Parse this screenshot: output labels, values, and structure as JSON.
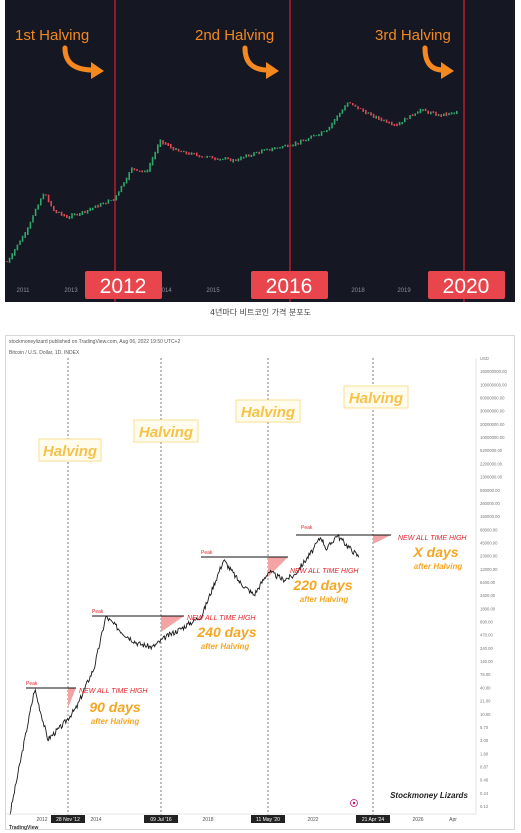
{
  "caption": "4년마다 비트코인 가격 분포도",
  "top": {
    "halving_labels": [
      "1st Halving",
      "2nd Halving",
      "3rd Halving"
    ],
    "year_badges": [
      "2012",
      "2016",
      "2020"
    ],
    "x_ticks": [
      "2011",
      "2013",
      "2014",
      "2015",
      "2017",
      "2018",
      "2019"
    ],
    "colors": {
      "background": "#151822",
      "halving_line": "#d0202c",
      "arrow": "#f5891f",
      "badge": "#e8454d",
      "up_candle": "#2ea86b",
      "down_candle": "#e04653"
    }
  },
  "bottom": {
    "header": "stockmoneylizard published on TradingView.com, Aug 06, 2022 19:50 UTC+2",
    "symbol": "Bitcoin / U.S. Dollar, 1D, INDEX",
    "halving_label": "Halving",
    "peak_label": "Peak",
    "ath_label": "NEW ALL TIME HIGH",
    "days": [
      "90 days",
      "240 days",
      "220 days",
      "X days"
    ],
    "after_label": "after Halving",
    "date_badges": [
      "28 Nov '12",
      "09 Jul '16",
      "11 May '20",
      "21 Apr '24"
    ],
    "x_ticks": [
      "2012",
      "2014",
      "2018",
      "2022",
      "2026",
      "Apr"
    ],
    "y_ticks": [
      "USD",
      "160000000.00",
      "100000000.00",
      "60000000.00",
      "30000000.00",
      "20000000.00",
      "10000000.00",
      "5200000.00",
      "2200000.00",
      "1300000.00",
      "590000.00",
      "260000.00",
      "150000.00",
      "68000.00",
      "45000.00",
      "23000.00",
      "12000.00",
      "6400.00",
      "3400.00",
      "1800.00",
      "890.00",
      "470.00",
      "240.00",
      "140.00",
      "76.00",
      "40.00",
      "21.00",
      "10.00",
      "5.70",
      "3.00",
      "1.60",
      "0.87",
      "0.46",
      "0.24",
      "0.12"
    ],
    "brand": "Stockmoney Lizards",
    "tv": "TradingView",
    "colors": {
      "ath_text": "#e0262c",
      "days_text": "#f5a623",
      "halving_text": "#f5c24a",
      "halving_border": "#f7d877",
      "shade": "#f3a3a3"
    }
  },
  "chart_data": [
    {
      "type": "line",
      "title": "",
      "xlabel": "",
      "ylabel": "",
      "x": [
        2010.6,
        2011.0,
        2011.4,
        2011.6,
        2011.9,
        2012.3,
        2012.9,
        2013.3,
        2013.6,
        2013.9,
        2014.3,
        2014.9,
        2015.5,
        2016.0,
        2016.5,
        2017.0,
        2017.5,
        2017.95,
        2018.5,
        2019.0,
        2019.5,
        2019.9,
        2020.3
      ],
      "values": [
        0.1,
        1.0,
        20,
        5,
        3,
        5,
        12,
        130,
        90,
        1000,
        450,
        300,
        230,
        430,
        650,
        1000,
        2500,
        19000,
        6500,
        3500,
        11000,
        7200,
        8800
      ],
      "x_ticks": [
        "2011",
        "2013",
        "2014",
        "2015",
        "2017",
        "2018",
        "2019"
      ],
      "annotations": [
        "1st Halving",
        "2nd Halving",
        "3rd Halving",
        "2012",
        "2016",
        "2020"
      ],
      "grid": false
    },
    {
      "type": "line",
      "title": "Bitcoin / U.S. Dollar, 1D, INDEX",
      "xlabel": "",
      "ylabel": "USD",
      "log_scale": true,
      "x": [
        2010.6,
        2011.45,
        2011.9,
        2012.4,
        2012.9,
        2013.2,
        2013.5,
        2013.9,
        2014.5,
        2015.0,
        2015.5,
        2016.0,
        2016.52,
        2017.2,
        2017.95,
        2018.5,
        2019.0,
        2019.5,
        2020.0,
        2020.36,
        2021.0,
        2021.3,
        2021.5,
        2021.85,
        2022.3,
        2022.6
      ],
      "values": [
        0.06,
        31,
        2.5,
        5,
        12.5,
        35,
        90,
        1150,
        500,
        300,
        250,
        430,
        650,
        1200,
        19500,
        6500,
        3400,
        11000,
        7300,
        8800,
        30000,
        63000,
        33000,
        68000,
        35000,
        23000
      ],
      "peaks": [
        31,
        1150,
        19500,
        68000
      ],
      "halvings": [
        "28 Nov '12",
        "09 Jul '16",
        "11 May '20",
        "21 Apr '24"
      ],
      "days_to_new_ath": [
        "90 days",
        "240 days",
        "220 days",
        "X days"
      ],
      "y_ticks": [
        "160000000.00",
        "100000000.00",
        "60000000.00",
        "30000000.00",
        "20000000.00",
        "10000000.00",
        "5200000.00",
        "2200000.00",
        "1300000.00",
        "590000.00",
        "260000.00",
        "150000.00",
        "68000.00",
        "45000.00",
        "23000.00",
        "12000.00",
        "6400.00",
        "3400.00",
        "1800.00",
        "890.00",
        "470.00",
        "240.00",
        "140.00",
        "76.00",
        "40.00",
        "21.00",
        "10.00",
        "5.70",
        "3.00",
        "1.60",
        "0.87",
        "0.46",
        "0.24",
        "0.12"
      ],
      "grid": false
    }
  ]
}
